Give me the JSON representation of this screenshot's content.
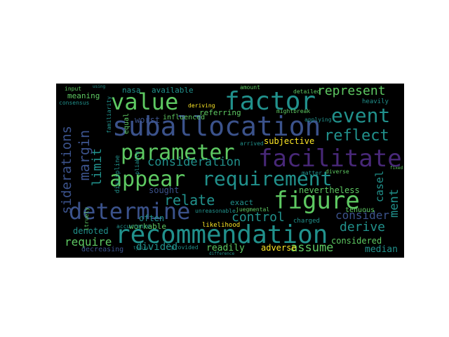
{
  "palette": {
    "background": "#000000",
    "page": "#ffffff",
    "blue": "#3b528b",
    "teal": "#21918c",
    "green": "#5ec962",
    "yellow": "#fde725",
    "purple": "#482878",
    "lightteal": "#2a9d8f"
  },
  "words": [
    "suballocation",
    "recommendation",
    "determine",
    "parameter",
    "facilitate",
    "factor",
    "value",
    "figure",
    "appear",
    "requirement",
    "event",
    "represent",
    "consideration",
    "reflect",
    "margin",
    "limit",
    "relate",
    "siderations",
    "control",
    "derive",
    "assume",
    "consider",
    "ment",
    "nevertheless",
    "casel",
    "require",
    "denoted",
    "divided",
    "readily",
    "adverse",
    "considered",
    "median",
    "decreasing",
    "workable",
    "sought",
    "often",
    "worst",
    "influenced",
    "subjective",
    "referring",
    "available",
    "nasa",
    "meaning",
    "input",
    "consensus",
    "amount",
    "detailed",
    "heavily",
    "mightbreak",
    "applying",
    "tenuous",
    "charged",
    "exact",
    "juegmental",
    "likelihood",
    "accurrence",
    "unreasonable",
    "deriving",
    "arrived",
    "matter",
    "diverse",
    "discipline",
    "equal",
    "pliable",
    "provided",
    "itruely",
    "familiarity",
    "typical",
    "difference",
    "using",
    "fixed"
  ]
}
